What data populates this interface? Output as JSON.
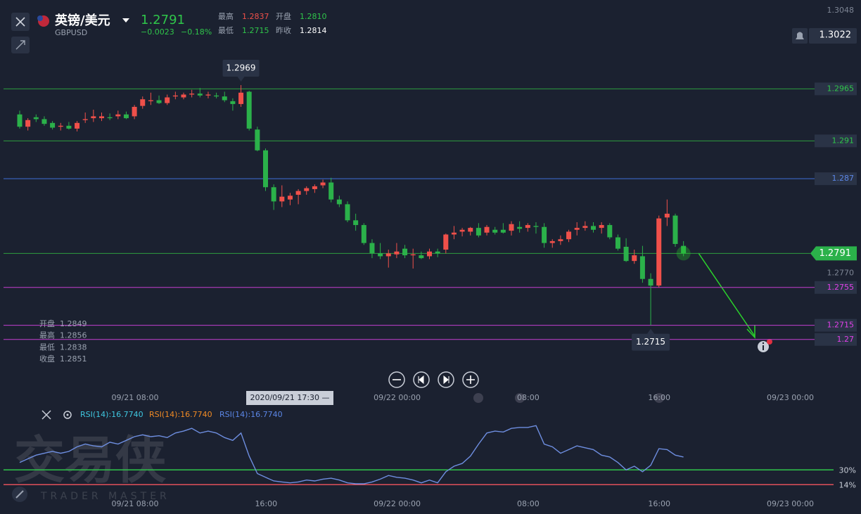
{
  "header": {
    "name": "英镑/美元",
    "symbol": "GBPUSD",
    "price": "1.2791",
    "change": "−0.0023",
    "change_pct": "−0.18%",
    "stats": [
      {
        "label": "最高",
        "value": "1.2837",
        "color": "#f0504a"
      },
      {
        "label": "开盘",
        "value": "1.2810",
        "color": "#2fc54a"
      },
      {
        "label": "最低",
        "value": "1.2715",
        "color": "#2fc54a"
      },
      {
        "label": "昨收",
        "value": "1.2814",
        "color": "#ffffff"
      }
    ]
  },
  "chart_data": {
    "type": "candlestick",
    "ylim": [
      1.265,
      1.3059
    ],
    "up_color": "#f0504a",
    "down_color": "#2bb14a",
    "candles": [
      [
        1.2938,
        1.2942,
        1.2923,
        1.2925
      ],
      [
        1.2925,
        1.2934,
        1.2921,
        1.2932
      ],
      [
        1.2935,
        1.2938,
        1.293,
        1.2933
      ],
      [
        1.2933,
        1.2936,
        1.2926,
        1.2928
      ],
      [
        1.2929,
        1.2931,
        1.2922,
        1.2924
      ],
      [
        1.2925,
        1.2929,
        1.2921,
        1.2926
      ],
      [
        1.2926,
        1.293,
        1.2922,
        1.2923
      ],
      [
        1.2923,
        1.2931,
        1.292,
        1.2929
      ],
      [
        1.2932,
        1.294,
        1.2929,
        1.2933
      ],
      [
        1.2934,
        1.2943,
        1.293,
        1.2936
      ],
      [
        1.2934,
        1.294,
        1.2931,
        1.2936
      ],
      [
        1.2935,
        1.2939,
        1.2932,
        1.2934
      ],
      [
        1.2936,
        1.2942,
        1.2933,
        1.2938
      ],
      [
        1.2938,
        1.2941,
        1.2933,
        1.2934
      ],
      [
        1.2936,
        1.2948,
        1.2933,
        1.2946
      ],
      [
        1.2947,
        1.2957,
        1.2944,
        1.2954
      ],
      [
        1.2952,
        1.2961,
        1.2948,
        1.2953
      ],
      [
        1.2953,
        1.2958,
        1.2949,
        1.295
      ],
      [
        1.295,
        1.2959,
        1.2948,
        1.2956
      ],
      [
        1.2957,
        1.2962,
        1.2954,
        1.2958
      ],
      [
        1.2956,
        1.2961,
        1.2954,
        1.2959
      ],
      [
        1.2959,
        1.2964,
        1.2956,
        1.296
      ],
      [
        1.296,
        1.2966,
        1.2956,
        1.2958
      ],
      [
        1.2958,
        1.2962,
        1.2955,
        1.2959
      ],
      [
        1.2958,
        1.2961,
        1.2955,
        1.2957
      ],
      [
        1.2957,
        1.2962,
        1.2951,
        1.2953
      ],
      [
        1.2952,
        1.2955,
        1.2942,
        1.2949
      ],
      [
        1.2949,
        1.2969,
        1.2946,
        1.2961
      ],
      [
        1.2962,
        1.2963,
        1.2921,
        1.2923
      ],
      [
        1.2922,
        1.2925,
        1.2899,
        1.29
      ],
      [
        1.29,
        1.2902,
        1.2857,
        1.2861
      ],
      [
        1.2861,
        1.2864,
        1.2837,
        1.2846
      ],
      [
        1.2846,
        1.2863,
        1.284,
        1.2851
      ],
      [
        1.2848,
        1.2855,
        1.2842,
        1.2852
      ],
      [
        1.2853,
        1.2859,
        1.2843,
        1.2857
      ],
      [
        1.2857,
        1.2862,
        1.2853,
        1.286
      ],
      [
        1.2859,
        1.2864,
        1.2855,
        1.2862
      ],
      [
        1.2863,
        1.2869,
        1.286,
        1.2866
      ],
      [
        1.2866,
        1.2871,
        1.2845,
        1.2848
      ],
      [
        1.2848,
        1.2852,
        1.284,
        1.2843
      ],
      [
        1.2843,
        1.2846,
        1.2824,
        1.2826
      ],
      [
        1.2826,
        1.2833,
        1.2815,
        1.2821
      ],
      [
        1.2821,
        1.2823,
        1.28,
        1.2802
      ],
      [
        1.2802,
        1.2806,
        1.2786,
        1.2791
      ],
      [
        1.2791,
        1.2802,
        1.2785,
        1.2788
      ],
      [
        1.2788,
        1.2795,
        1.2776,
        1.2791
      ],
      [
        1.279,
        1.2802,
        1.2786,
        1.2793
      ],
      [
        1.2796,
        1.28,
        1.2786,
        1.2789
      ],
      [
        1.2789,
        1.2796,
        1.2775,
        1.279
      ],
      [
        1.2789,
        1.2793,
        1.2785,
        1.2786
      ],
      [
        1.2788,
        1.2796,
        1.2785,
        1.2793
      ],
      [
        1.2793,
        1.2796,
        1.2787,
        1.2791
      ],
      [
        1.2795,
        1.2812,
        1.2791,
        1.2811
      ],
      [
        1.2811,
        1.282,
        1.2806,
        1.2813
      ],
      [
        1.2814,
        1.2818,
        1.2809,
        1.2816
      ],
      [
        1.2814,
        1.2819,
        1.281,
        1.2818
      ],
      [
        1.2818,
        1.2823,
        1.2808,
        1.281
      ],
      [
        1.2813,
        1.2821,
        1.281,
        1.2819
      ],
      [
        1.2816,
        1.2819,
        1.2811,
        1.2813
      ],
      [
        1.2816,
        1.2823,
        1.2812,
        1.2813
      ],
      [
        1.2815,
        1.2825,
        1.281,
        1.2822
      ],
      [
        1.2819,
        1.2825,
        1.2813,
        1.2817
      ],
      [
        1.2818,
        1.2823,
        1.2814,
        1.2821
      ],
      [
        1.282,
        1.2824,
        1.2812,
        1.2819
      ],
      [
        1.2819,
        1.2823,
        1.2797,
        1.2802
      ],
      [
        1.2802,
        1.2806,
        1.2797,
        1.2804
      ],
      [
        1.2804,
        1.281,
        1.28,
        1.2806
      ],
      [
        1.2806,
        1.2816,
        1.2803,
        1.2814
      ],
      [
        1.2816,
        1.2824,
        1.281,
        1.2818
      ],
      [
        1.2818,
        1.2825,
        1.2815,
        1.282
      ],
      [
        1.282,
        1.2824,
        1.2813,
        1.2816
      ],
      [
        1.2818,
        1.2824,
        1.2812,
        1.2821
      ],
      [
        1.2821,
        1.2823,
        1.2806,
        1.2808
      ],
      [
        1.2808,
        1.2811,
        1.2794,
        1.2796
      ],
      [
        1.2798,
        1.2807,
        1.2782,
        1.2783
      ],
      [
        1.2783,
        1.2795,
        1.278,
        1.2789
      ],
      [
        1.2788,
        1.2799,
        1.276,
        1.2764
      ],
      [
        1.2764,
        1.277,
        1.2715,
        1.2757
      ],
      [
        1.2757,
        1.2831,
        1.2755,
        1.2828
      ],
      [
        1.2829,
        1.2848,
        1.282,
        1.2833
      ],
      [
        1.2831,
        1.2833,
        1.2798,
        1.2801
      ],
      [
        1.2799,
        1.2804,
        1.2788,
        1.2791
      ]
    ],
    "yticks": [
      1.3048,
      {
        "value": 1.277,
        "label": "1.2770"
      }
    ],
    "levels": [
      {
        "value": 1.2965,
        "color": "#2e9e3e"
      },
      {
        "value": 1.291,
        "color": "#2e9e3e"
      },
      {
        "value": 1.287,
        "color": "#3f6fd6"
      },
      {
        "value": 1.2755,
        "color": "#c43fd0"
      },
      {
        "value": 1.2715,
        "color": "#c43fd0"
      },
      {
        "value": 1.27,
        "color": "#c43fd0"
      }
    ],
    "current": 1.2791,
    "alert": 1.3022,
    "high_marker": 1.2969,
    "low_marker": 1.2715,
    "xticks": [
      "09/21 08:00",
      "16:00",
      "09/22 00:00",
      "08:00",
      "16:00",
      "09/23 00:00"
    ],
    "crosshair_label": "2020/09/21 17:30 —",
    "hover": [
      {
        "label": "开盘",
        "value": "1.2849"
      },
      {
        "label": "最高",
        "value": "1.2856"
      },
      {
        "label": "最低",
        "value": "1.2838"
      },
      {
        "label": "收盘",
        "value": "1.2851"
      }
    ]
  },
  "rsi": {
    "type": "line",
    "ylim": [
      -17,
      82
    ],
    "color": "#6e8ee0",
    "legend": [
      {
        "text": "RSI(14):16.7740",
        "color": "#3fc7e0"
      },
      {
        "text": "RSI(14):16.7740",
        "color": "#f08a24"
      },
      {
        "text": "RSI(14):16.7740",
        "color": "#5b86e6"
      }
    ],
    "levels": [
      {
        "value": 30,
        "label": "30%",
        "color": "#2fc54a"
      },
      {
        "value": 14,
        "label": "14%",
        "color": "#e0505a"
      }
    ],
    "values": [
      38,
      42,
      46,
      48,
      50,
      48,
      50,
      55,
      58,
      56,
      55,
      60,
      58,
      62,
      66,
      68,
      66,
      67,
      65,
      70,
      72,
      75,
      70,
      72,
      70,
      65,
      62,
      70,
      45,
      26,
      22,
      18,
      17,
      16,
      17,
      19,
      18,
      20,
      21,
      19,
      16,
      15,
      15,
      17,
      20,
      24,
      22,
      21,
      19,
      16,
      19,
      16,
      28,
      34,
      37,
      45,
      58,
      70,
      72,
      71,
      75,
      76,
      76,
      78,
      58,
      55,
      48,
      52,
      56,
      54,
      52,
      46,
      44,
      38,
      30,
      34,
      28,
      35,
      53,
      52,
      46,
      44
    ]
  },
  "watermark": {
    "cn": "交易侠",
    "en": "TRADER MASTER"
  }
}
